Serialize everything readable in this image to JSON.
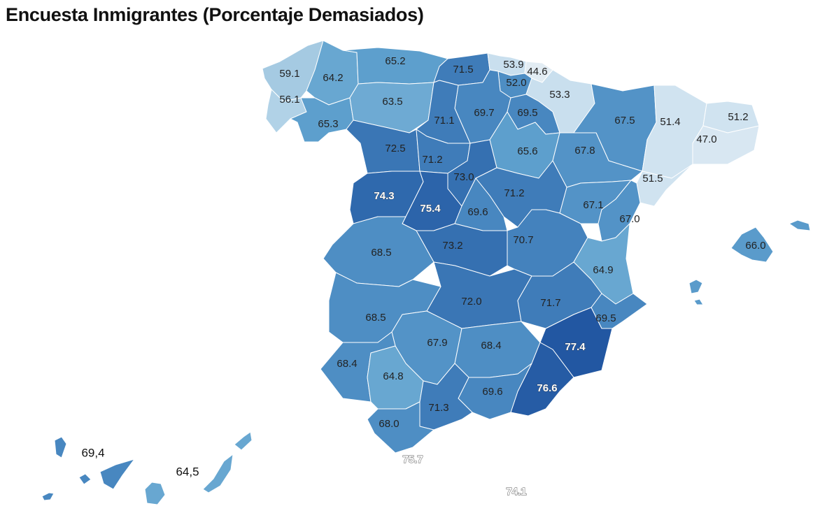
{
  "title": "Encuesta Inmigrantes (Porcentaje Demasiados)",
  "colors": {
    "v44": "#e2ecf3",
    "v47": "#d8e7f2",
    "v51": "#d0e3f0",
    "v53": "#c9dfee",
    "v56": "#b1d2e7",
    "v59": "#a5cae2",
    "v63": "#6eaad3",
    "v64": "#68a7d1",
    "v65": "#5d9fcd",
    "v66": "#5a9bcb",
    "v67": "#5393c7",
    "v68": "#4e8ec4",
    "v69": "#4887c0",
    "v70": "#4482bd",
    "v71": "#3f7cb9",
    "v72": "#3a76b5",
    "v73": "#3570b1",
    "v74": "#2f69ad",
    "v75": "#2c64aa",
    "v76": "#265ca5",
    "v77": "#2257a2"
  },
  "regions": [
    {
      "value": "59.1"
    },
    {
      "value": "64.2"
    },
    {
      "value": "65.2"
    },
    {
      "value": "71.5"
    },
    {
      "value": "53.9"
    },
    {
      "value": "44.6"
    },
    {
      "value": "52.0"
    },
    {
      "value": "56.1"
    },
    {
      "value": "53.3"
    },
    {
      "value": "63.5"
    },
    {
      "value": "69.7"
    },
    {
      "value": "69.5"
    },
    {
      "value": "67.5"
    },
    {
      "value": "51.4"
    },
    {
      "value": "51.2"
    },
    {
      "value": "71.1"
    },
    {
      "value": "65.3"
    },
    {
      "value": "47.0"
    },
    {
      "value": "72.5"
    },
    {
      "value": "65.6"
    },
    {
      "value": "67.8"
    },
    {
      "value": "71.2"
    },
    {
      "value": "73.0"
    },
    {
      "value": "51.5"
    },
    {
      "value": "74.3"
    },
    {
      "value": "71.2"
    },
    {
      "value": "67.1"
    },
    {
      "value": "75.4"
    },
    {
      "value": "69.6"
    },
    {
      "value": "67.0"
    },
    {
      "value": "73.2"
    },
    {
      "value": "70.7"
    },
    {
      "value": "66.0"
    },
    {
      "value": "68.5"
    },
    {
      "value": "64.9"
    },
    {
      "value": "72.0"
    },
    {
      "value": "71.7"
    },
    {
      "value": "68.5"
    },
    {
      "value": "69.5"
    },
    {
      "value": "77.4"
    },
    {
      "value": "67.9"
    },
    {
      "value": "68.4"
    },
    {
      "value": "68.4"
    },
    {
      "value": "64.8"
    },
    {
      "value": "76.6"
    },
    {
      "value": "69.6"
    },
    {
      "value": "71.3"
    },
    {
      "value": "68.0"
    }
  ],
  "canarias": [
    {
      "value": "69,4"
    },
    {
      "value": "64,5"
    }
  ],
  "ceuta": "75.7",
  "melilla": "74.1"
}
